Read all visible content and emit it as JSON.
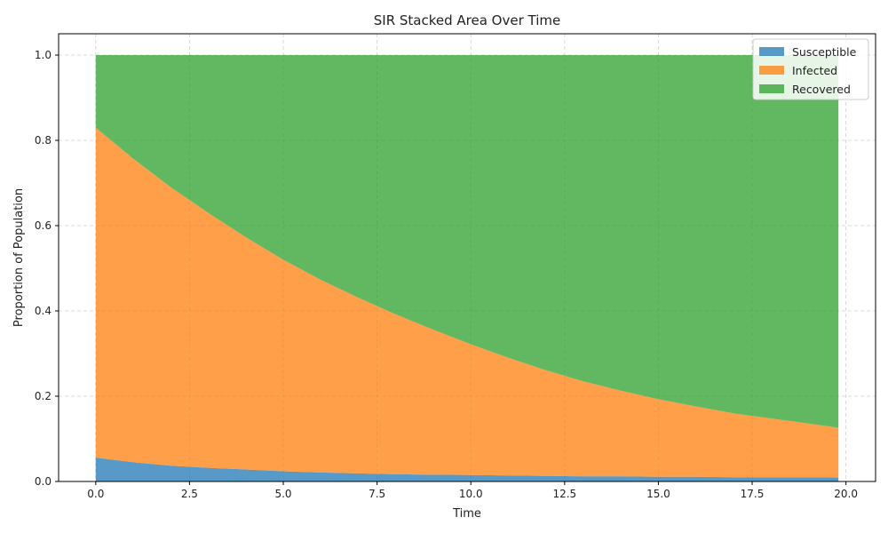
{
  "chart_data": {
    "type": "area",
    "stacked": true,
    "title": "SIR Stacked Area Over Time",
    "xlabel": "Time",
    "ylabel": "Proportion of Population",
    "xlim": [
      -0.99,
      20.79
    ],
    "ylim": [
      0,
      1.05
    ],
    "xticks": [
      0.0,
      2.5,
      5.0,
      7.5,
      10.0,
      12.5,
      15.0,
      17.5,
      20.0
    ],
    "xtick_labels": [
      "0.0",
      "2.5",
      "5.0",
      "7.5",
      "10.0",
      "12.5",
      "15.0",
      "17.5",
      "20.0"
    ],
    "yticks": [
      0.0,
      0.2,
      0.4,
      0.6,
      0.8,
      1.0
    ],
    "ytick_labels": [
      "0.0",
      "0.2",
      "0.4",
      "0.6",
      "0.8",
      "1.0"
    ],
    "grid": true,
    "legend_position": "top-right",
    "x": [
      0.0,
      1.0,
      2.0,
      3.0,
      4.0,
      5.0,
      6.0,
      7.0,
      8.0,
      9.0,
      10.0,
      11.0,
      12.0,
      13.0,
      14.0,
      15.0,
      16.0,
      17.0,
      18.0,
      19.0,
      19.8
    ],
    "series": [
      {
        "name": "Susceptible",
        "color": "#1f77b4",
        "values": [
          0.056,
          0.045,
          0.037,
          0.032,
          0.028,
          0.024,
          0.021,
          0.019,
          0.017,
          0.016,
          0.015,
          0.014,
          0.013,
          0.012,
          0.012,
          0.011,
          0.011,
          0.01,
          0.01,
          0.01,
          0.009
        ]
      },
      {
        "name": "Infected",
        "color": "#ff7f0e",
        "values": [
          0.774,
          0.712,
          0.653,
          0.598,
          0.545,
          0.496,
          0.452,
          0.412,
          0.375,
          0.34,
          0.307,
          0.276,
          0.248,
          0.223,
          0.201,
          0.182,
          0.165,
          0.15,
          0.138,
          0.126,
          0.117
        ]
      },
      {
        "name": "Recovered",
        "color": "#2ca02c",
        "values": [
          0.17,
          0.243,
          0.31,
          0.37,
          0.427,
          0.48,
          0.527,
          0.569,
          0.608,
          0.644,
          0.678,
          0.71,
          0.739,
          0.765,
          0.787,
          0.807,
          0.824,
          0.84,
          0.852,
          0.864,
          0.874
        ]
      }
    ]
  }
}
